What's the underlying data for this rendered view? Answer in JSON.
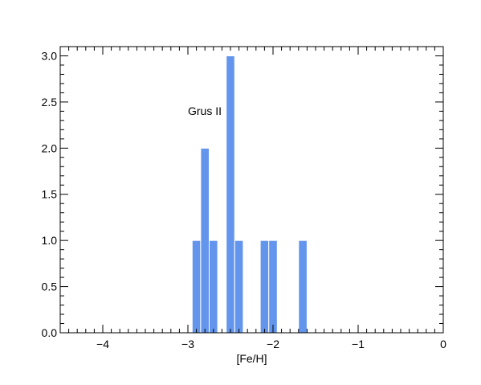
{
  "chart_data": {
    "type": "bar",
    "title": "",
    "annotation": "Grus II",
    "xlabel": "[Fe/H]",
    "ylabel": "",
    "xlim": [
      -4.5,
      0
    ],
    "ylim": [
      0,
      3.1
    ],
    "xticks": [
      -4,
      -3,
      -2,
      -1,
      0
    ],
    "xtick_labels": [
      "−4",
      "−3",
      "−2",
      "−1",
      "0"
    ],
    "yticks": [
      0,
      0.5,
      1,
      1.5,
      2,
      2.5,
      3
    ],
    "ytick_labels": [
      "0.0",
      "0.5",
      "1.0",
      "1.5",
      "2.0",
      "2.5",
      "3.0"
    ],
    "bin_width": 0.1,
    "bars_color": "#6495ED",
    "bars": [
      {
        "x0": -2.95,
        "x1": -2.85,
        "value": 1
      },
      {
        "x0": -2.85,
        "x1": -2.75,
        "value": 2
      },
      {
        "x0": -2.75,
        "x1": -2.65,
        "value": 1
      },
      {
        "x0": -2.55,
        "x1": -2.45,
        "value": 3
      },
      {
        "x0": -2.45,
        "x1": -2.35,
        "value": 1
      },
      {
        "x0": -2.15,
        "x1": -2.05,
        "value": 1
      },
      {
        "x0": -2.05,
        "x1": -1.95,
        "value": 1
      },
      {
        "x0": -1.7,
        "x1": -1.6,
        "value": 1
      }
    ],
    "grid": false
  }
}
